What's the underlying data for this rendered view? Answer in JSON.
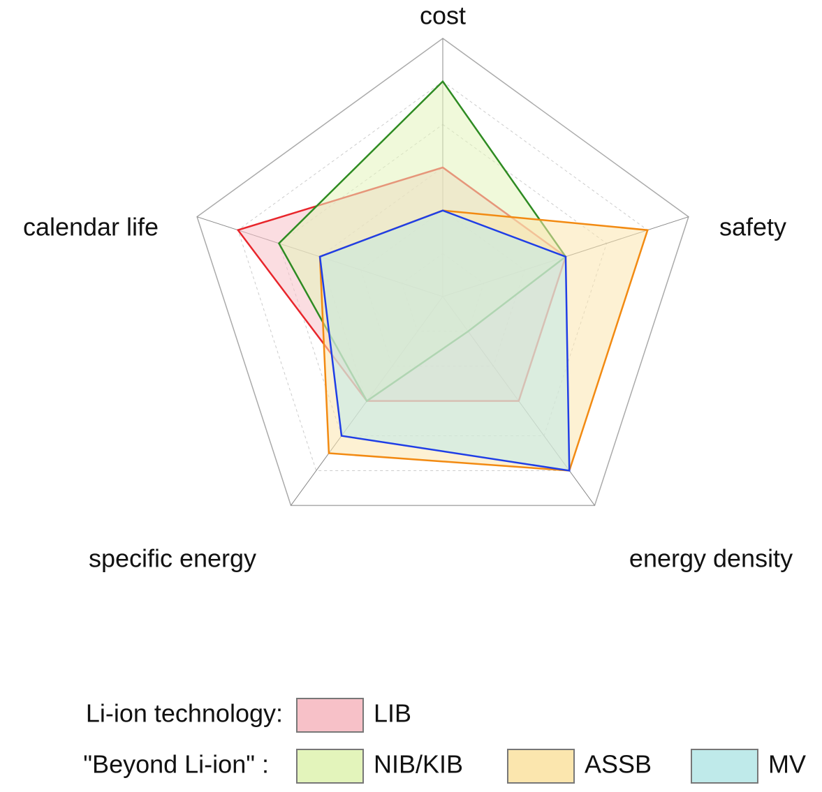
{
  "chart_data": {
    "type": "radar",
    "axes": [
      "cost",
      "safety",
      "energy density",
      "specific energy",
      "calendar life"
    ],
    "rlim": [
      0,
      6
    ],
    "rticks": [
      1,
      2,
      3,
      4,
      5,
      6
    ],
    "legend_groups": [
      "Li-ion technology:",
      "\"Beyond Li-ion\" :"
    ],
    "series": [
      {
        "name": "LIB",
        "color": "#e8252b",
        "fill": "#f7c1c8",
        "values": [
          3,
          3,
          3,
          3,
          5
        ]
      },
      {
        "name": "NIB/KIB",
        "color": "#2e8b22",
        "fill": "#e3f4bb",
        "values": [
          5,
          3,
          1,
          3,
          4
        ]
      },
      {
        "name": "ASSB",
        "color": "#f28a12",
        "fill": "#fbe6ae",
        "values": [
          2,
          5,
          5,
          4.5,
          3
        ]
      },
      {
        "name": "MV",
        "color": "#1f3ee6",
        "fill": "#bfeaea",
        "values": [
          2,
          3,
          5,
          4,
          3
        ]
      }
    ]
  }
}
